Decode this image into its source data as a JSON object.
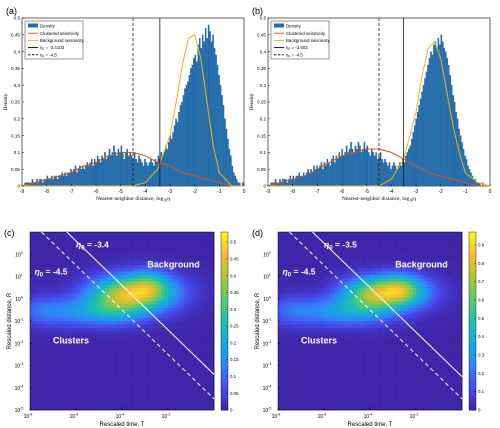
{
  "chart_data": [
    {
      "panel_label": "(a)",
      "type": "bar",
      "ylabel": "Density",
      "xlabel": "Nearest-neighbor distance, log",
      "xlabel_sub": "10",
      "xlabel_var": "η",
      "xlim": [
        -9,
        0
      ],
      "ylim": [
        0,
        0.5
      ],
      "x_ticks": [
        "-9",
        "-8",
        "-7",
        "-6",
        "-5",
        "-4",
        "-3",
        "-2",
        "-1",
        "0"
      ],
      "y_ticks": [
        "0",
        "0.05",
        "0.1",
        "0.15",
        "0.2",
        "0.25",
        "0.3",
        "0.35",
        "0.4",
        "0.45",
        "0.5"
      ],
      "legend": [
        "Density",
        "Clustered seismicity",
        "Background seismicity",
        "η₀ = -3.4103",
        "η₀ = -4.5"
      ],
      "threshold_solid": -3.4103,
      "threshold_dashed": -4.5,
      "density": {
        "bin_start": -8.9,
        "bin_width": 0.06,
        "values": [
          0.01,
          0.01,
          0.01,
          0.01,
          0.01,
          0.02,
          0.01,
          0.01,
          0.02,
          0.01,
          0.02,
          0.02,
          0.01,
          0.02,
          0.02,
          0.03,
          0.02,
          0.02,
          0.03,
          0.02,
          0.03,
          0.03,
          0.02,
          0.03,
          0.03,
          0.04,
          0.03,
          0.04,
          0.03,
          0.04,
          0.04,
          0.05,
          0.04,
          0.05,
          0.06,
          0.04,
          0.05,
          0.06,
          0.05,
          0.06,
          0.05,
          0.06,
          0.07,
          0.06,
          0.07,
          0.08,
          0.06,
          0.08,
          0.07,
          0.09,
          0.08,
          0.07,
          0.09,
          0.08,
          0.1,
          0.08,
          0.09,
          0.11,
          0.09,
          0.1,
          0.12,
          0.1,
          0.09,
          0.11,
          0.1,
          0.12,
          0.1,
          0.08,
          0.1,
          0.11,
          0.09,
          0.1,
          0.09,
          0.08,
          0.1,
          0.08,
          0.07,
          0.09,
          0.08,
          0.07,
          0.06,
          0.08,
          0.07,
          0.06,
          0.07,
          0.08,
          0.07,
          0.06,
          0.08,
          0.07,
          0.09,
          0.08,
          0.1,
          0.09,
          0.1,
          0.12,
          0.11,
          0.13,
          0.15,
          0.14,
          0.16,
          0.18,
          0.2,
          0.19,
          0.22,
          0.24,
          0.25,
          0.27,
          0.29,
          0.3,
          0.31,
          0.33,
          0.35,
          0.36,
          0.38,
          0.39,
          0.37,
          0.42,
          0.44,
          0.41,
          0.45,
          0.43,
          0.47,
          0.44,
          0.48,
          0.46,
          0.43,
          0.45,
          0.41,
          0.39,
          0.36,
          0.33,
          0.3,
          0.27,
          0.24,
          0.2,
          0.17,
          0.14,
          0.11,
          0.09,
          0.06,
          0.04,
          0.03,
          0.02,
          0.01,
          0.01,
          0.0,
          0.01,
          0.0,
          0.0
        ]
      },
      "clustered_fit": {
        "x": [
          -9,
          -8.5,
          -8,
          -7.5,
          -7,
          -6.5,
          -6,
          -5.5,
          -5,
          -4.5,
          -4,
          -3.5,
          -3,
          -2.5,
          -2,
          -1.5,
          -1,
          -0.5,
          0
        ],
        "y": [
          0.0,
          0.01,
          0.02,
          0.03,
          0.04,
          0.06,
          0.07,
          0.09,
          0.1,
          0.1,
          0.09,
          0.07,
          0.06,
          0.04,
          0.03,
          0.02,
          0.01,
          0.0,
          0.0
        ]
      },
      "background_fit": {
        "x": [
          -9,
          -8,
          -7,
          -6,
          -5,
          -4.5,
          -4,
          -3.5,
          -3,
          -2.75,
          -2.5,
          -2.25,
          -2,
          -1.75,
          -1.5,
          -1.25,
          -1,
          -0.5,
          0
        ],
        "y": [
          0,
          0,
          0,
          0,
          0,
          0.0,
          0.01,
          0.05,
          0.15,
          0.25,
          0.36,
          0.44,
          0.45,
          0.38,
          0.25,
          0.12,
          0.04,
          0,
          0
        ]
      }
    },
    {
      "panel_label": "(b)",
      "type": "bar",
      "ylabel": "Density",
      "xlabel": "Nearest-neighbor distance, log",
      "xlabel_sub": "10",
      "xlabel_var": "η",
      "xlim": [
        -9,
        0
      ],
      "ylim": [
        0,
        0.5
      ],
      "x_ticks": [
        "-9",
        "-8",
        "-7",
        "-6",
        "-5",
        "-4",
        "-3",
        "-2",
        "-1",
        "0"
      ],
      "y_ticks": [
        "0",
        "0.05",
        "0.1",
        "0.15",
        "0.2",
        "0.25",
        "0.3",
        "0.35",
        "0.4",
        "0.45",
        "0.5"
      ],
      "legend": [
        "Density",
        "Clustered seismicity",
        "Background seismicity",
        "η₀ = -3.502",
        "η₀ = -4.5"
      ],
      "threshold_solid": -3.502,
      "threshold_dashed": -4.5,
      "density": {
        "bin_start": -8.9,
        "bin_width": 0.06,
        "values": [
          0.01,
          0.01,
          0.01,
          0.02,
          0.01,
          0.01,
          0.02,
          0.01,
          0.02,
          0.02,
          0.02,
          0.01,
          0.02,
          0.03,
          0.02,
          0.03,
          0.02,
          0.03,
          0.03,
          0.04,
          0.03,
          0.03,
          0.04,
          0.03,
          0.04,
          0.05,
          0.04,
          0.05,
          0.04,
          0.06,
          0.05,
          0.06,
          0.05,
          0.06,
          0.07,
          0.05,
          0.07,
          0.06,
          0.08,
          0.07,
          0.06,
          0.08,
          0.09,
          0.07,
          0.09,
          0.08,
          0.1,
          0.09,
          0.11,
          0.09,
          0.1,
          0.12,
          0.1,
          0.11,
          0.13,
          0.11,
          0.1,
          0.12,
          0.11,
          0.13,
          0.12,
          0.1,
          0.11,
          0.13,
          0.11,
          0.12,
          0.1,
          0.09,
          0.11,
          0.1,
          0.09,
          0.1,
          0.08,
          0.09,
          0.1,
          0.08,
          0.07,
          0.08,
          0.07,
          0.06,
          0.07,
          0.05,
          0.06,
          0.07,
          0.06,
          0.05,
          0.06,
          0.07,
          0.06,
          0.08,
          0.07,
          0.09,
          0.1,
          0.11,
          0.12,
          0.14,
          0.16,
          0.18,
          0.2,
          0.22,
          0.24,
          0.26,
          0.28,
          0.3,
          0.32,
          0.34,
          0.36,
          0.38,
          0.4,
          0.39,
          0.42,
          0.43,
          0.41,
          0.44,
          0.42,
          0.45,
          0.43,
          0.41,
          0.4,
          0.38,
          0.36,
          0.33,
          0.3,
          0.27,
          0.25,
          0.22,
          0.2,
          0.17,
          0.15,
          0.13,
          0.11,
          0.09,
          0.08,
          0.06,
          0.05,
          0.04,
          0.03,
          0.02,
          0.02,
          0.01,
          0.01,
          0.01,
          0.0,
          0.01,
          0.0,
          0.0,
          0.0,
          0.0,
          0.0,
          0.0
        ]
      },
      "clustered_fit": {
        "x": [
          -9,
          -8.5,
          -8,
          -7.5,
          -7,
          -6.5,
          -6,
          -5.5,
          -5,
          -4.5,
          -4,
          -3.5,
          -3,
          -2.5,
          -2,
          -1.5,
          -1,
          -0.5,
          0
        ],
        "y": [
          0.0,
          0.01,
          0.02,
          0.03,
          0.05,
          0.07,
          0.09,
          0.1,
          0.11,
          0.11,
          0.1,
          0.08,
          0.06,
          0.04,
          0.03,
          0.02,
          0.01,
          0.0,
          0.0
        ]
      },
      "background_fit": {
        "x": [
          -9,
          -8,
          -7,
          -6,
          -5,
          -4.5,
          -4,
          -3.5,
          -3,
          -2.75,
          -2.5,
          -2.25,
          -2,
          -1.75,
          -1.5,
          -1.25,
          -1,
          -0.5,
          0
        ],
        "y": [
          0,
          0,
          0,
          0,
          0,
          0.0,
          0.02,
          0.08,
          0.22,
          0.33,
          0.41,
          0.43,
          0.38,
          0.28,
          0.18,
          0.1,
          0.04,
          0.01,
          0
        ]
      }
    },
    {
      "panel_label": "(c)",
      "type": "heatmap",
      "xlabel": "Rescaled time, T",
      "ylabel": "Rescaled distance, R",
      "x_log_range": [
        -8,
        0
      ],
      "y_log_range": [
        -5,
        3
      ],
      "x_ticks": [
        {
          "base": "10",
          "exp": "-8"
        },
        {
          "base": "10",
          "exp": "-6"
        },
        {
          "base": "10",
          "exp": "-4"
        },
        {
          "base": "10",
          "exp": "-2"
        }
      ],
      "y_ticks": [
        {
          "base": "10",
          "exp": "2"
        },
        {
          "base": "10",
          "exp": "1"
        },
        {
          "base": "10",
          "exp": "0"
        },
        {
          "base": "10",
          "exp": "-1"
        },
        {
          "base": "10",
          "exp": "-2"
        },
        {
          "base": "10",
          "exp": "-3"
        },
        {
          "base": "10",
          "exp": "-4"
        },
        {
          "base": "10",
          "exp": "-5"
        }
      ],
      "colorbar_ticks": [
        "0.5",
        "0.45",
        "0.4",
        "0.35",
        "0.3",
        "0.25",
        "0.2",
        "0.15",
        "0.1",
        "0.05",
        "0"
      ],
      "colorbar_max": 0.53,
      "eta_solid": -3.4,
      "eta_dashed": -4.5,
      "label_solid_prefix": "η",
      "label_solid_sub": "0",
      "label_solid_value": " = -3.4",
      "label_dashed_prefix": "η",
      "label_dashed_sub": "0",
      "label_dashed_value": " = -4.5",
      "region_labels": [
        "Background",
        "Clusters"
      ],
      "blobs": [
        {
          "logT": -3.4,
          "logR": 0.3,
          "sT": 1.25,
          "sR": 0.55,
          "a": 0.38
        },
        {
          "logT": -2.8,
          "logR": 0.6,
          "sT": 0.55,
          "sR": 0.5,
          "a": 0.12
        },
        {
          "logT": -5.5,
          "logR": -0.6,
          "sT": 1.8,
          "sR": 0.45,
          "a": 0.14
        },
        {
          "logT": -4.3,
          "logR": -0.2,
          "sT": 0.9,
          "sR": 0.55,
          "a": 0.12
        },
        {
          "logT": -7.5,
          "logR": -0.5,
          "sT": 0.7,
          "sR": 0.5,
          "a": 0.05
        }
      ]
    },
    {
      "panel_label": "(d)",
      "type": "heatmap",
      "xlabel": "Rescaled time, T",
      "ylabel": "Rescaled distance, R",
      "x_log_range": [
        -8,
        0
      ],
      "y_log_range": [
        -5,
        3
      ],
      "x_ticks": [
        {
          "base": "10",
          "exp": "-8"
        },
        {
          "base": "10",
          "exp": "-6"
        },
        {
          "base": "10",
          "exp": "-4"
        },
        {
          "base": "10",
          "exp": "-2"
        }
      ],
      "y_ticks": [
        {
          "base": "10",
          "exp": "2"
        },
        {
          "base": "10",
          "exp": "1"
        },
        {
          "base": "10",
          "exp": "0"
        },
        {
          "base": "10",
          "exp": "-1"
        },
        {
          "base": "10",
          "exp": "-2"
        },
        {
          "base": "10",
          "exp": "-3"
        },
        {
          "base": "10",
          "exp": "-4"
        },
        {
          "base": "10",
          "exp": "-5"
        }
      ],
      "colorbar_ticks": [
        "0.9",
        "0.8",
        "0.7",
        "0.6",
        "0.5",
        "0.4",
        "0.3",
        "0.2",
        "0.1",
        "0"
      ],
      "colorbar_max": 0.97,
      "eta_solid": -3.5,
      "eta_dashed": -4.5,
      "label_solid_prefix": "η",
      "label_solid_sub": "0",
      "label_solid_value": " = -3.5",
      "label_dashed_prefix": "η",
      "label_dashed_sub": "0",
      "label_dashed_value": " = -4.5",
      "region_labels": [
        "Background",
        "Clusters"
      ],
      "blobs": [
        {
          "logT": -3.2,
          "logR": 0.3,
          "sT": 1.15,
          "sR": 0.5,
          "a": 0.72
        },
        {
          "logT": -2.6,
          "logR": 0.5,
          "sT": 0.5,
          "sR": 0.45,
          "a": 0.2
        },
        {
          "logT": -5.4,
          "logR": -0.6,
          "sT": 1.7,
          "sR": 0.45,
          "a": 0.26
        },
        {
          "logT": -4.2,
          "logR": -0.1,
          "sT": 0.9,
          "sR": 0.55,
          "a": 0.2
        },
        {
          "logT": -7.5,
          "logR": -0.5,
          "sT": 0.7,
          "sR": 0.5,
          "a": 0.09
        }
      ]
    }
  ],
  "colors": {
    "bar": "#1f6fb2",
    "clustered_line": "#d95319",
    "background_line": "#edb120",
    "threshold_line": "#000000"
  }
}
